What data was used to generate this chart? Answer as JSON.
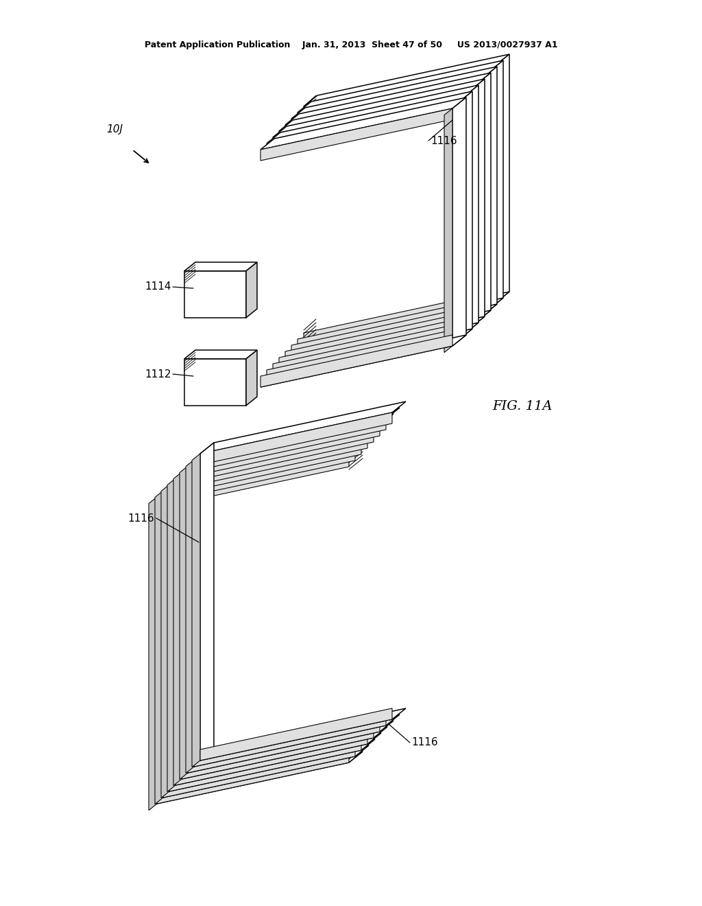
{
  "bg_color": "#ffffff",
  "line_color": "#000000",
  "line_width": 1.1,
  "header_text": "Patent Application Publication    Jan. 31, 2013  Sheet 47 of 50     US 2013/0027937 A1",
  "fig_label": "FIG. 11A",
  "N_channels": 8,
  "label_fontsize": 11
}
